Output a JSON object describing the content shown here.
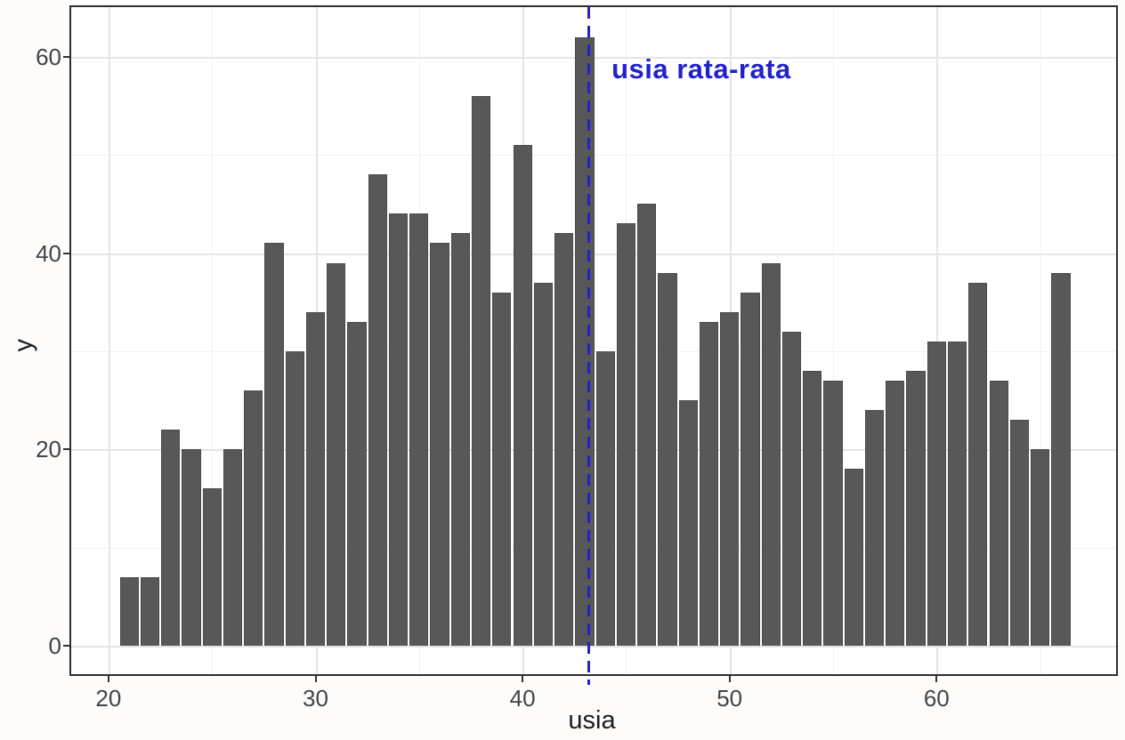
{
  "figure": {
    "background": "#fdfcfa",
    "panel_background": "#ffffff",
    "panel_border_color": "#2e2e2e",
    "grid_major_color": "#e5e5e5",
    "grid_minor_color": "#f1f1f1",
    "bar_fill": "#585858",
    "bar_edge": "#4a4a4a",
    "tick_color": "#333333",
    "axis_text_color": "#444444",
    "axis_title_color": "#1c1c1c",
    "accent_blue": "#2222cd"
  },
  "chart_data": {
    "type": "bar",
    "subtype": "histogram",
    "title": "",
    "xlabel": "usia",
    "ylabel": "y",
    "bin_width": 1,
    "categories": [
      21,
      22,
      23,
      24,
      25,
      26,
      27,
      28,
      29,
      30,
      31,
      32,
      33,
      34,
      35,
      36,
      37,
      38,
      39,
      40,
      41,
      42,
      43,
      44,
      45,
      46,
      47,
      48,
      49,
      50,
      51,
      52,
      53,
      54,
      55,
      56,
      57,
      58,
      59,
      60,
      61,
      62,
      63,
      64,
      65,
      66
    ],
    "values": [
      7,
      7,
      22,
      20,
      16,
      20,
      26,
      41,
      30,
      34,
      39,
      33,
      48,
      44,
      44,
      41,
      42,
      56,
      36,
      51,
      37,
      42,
      62,
      30,
      43,
      45,
      38,
      25,
      33,
      34,
      36,
      39,
      32,
      28,
      27,
      18,
      24,
      27,
      28,
      31,
      31,
      37,
      27,
      23,
      20,
      38
    ],
    "xlim": [
      18.2,
      68.67
    ],
    "ylim": [
      -2.89,
      65.04
    ],
    "x_major_ticks": [
      20,
      30,
      40,
      50,
      60
    ],
    "x_minor_ticks": [
      25,
      35,
      45,
      55,
      65
    ],
    "y_major_ticks": [
      0,
      20,
      40,
      60
    ],
    "y_minor_ticks": [
      10,
      30,
      50
    ],
    "grid": true,
    "legend": "none",
    "mean_line": {
      "x": 43.2,
      "style": "dashed",
      "color": "#2222cd"
    },
    "annotation": {
      "text": "usia rata-rata",
      "x": 44.3,
      "y": 58.5,
      "color": "#2222cd"
    }
  }
}
